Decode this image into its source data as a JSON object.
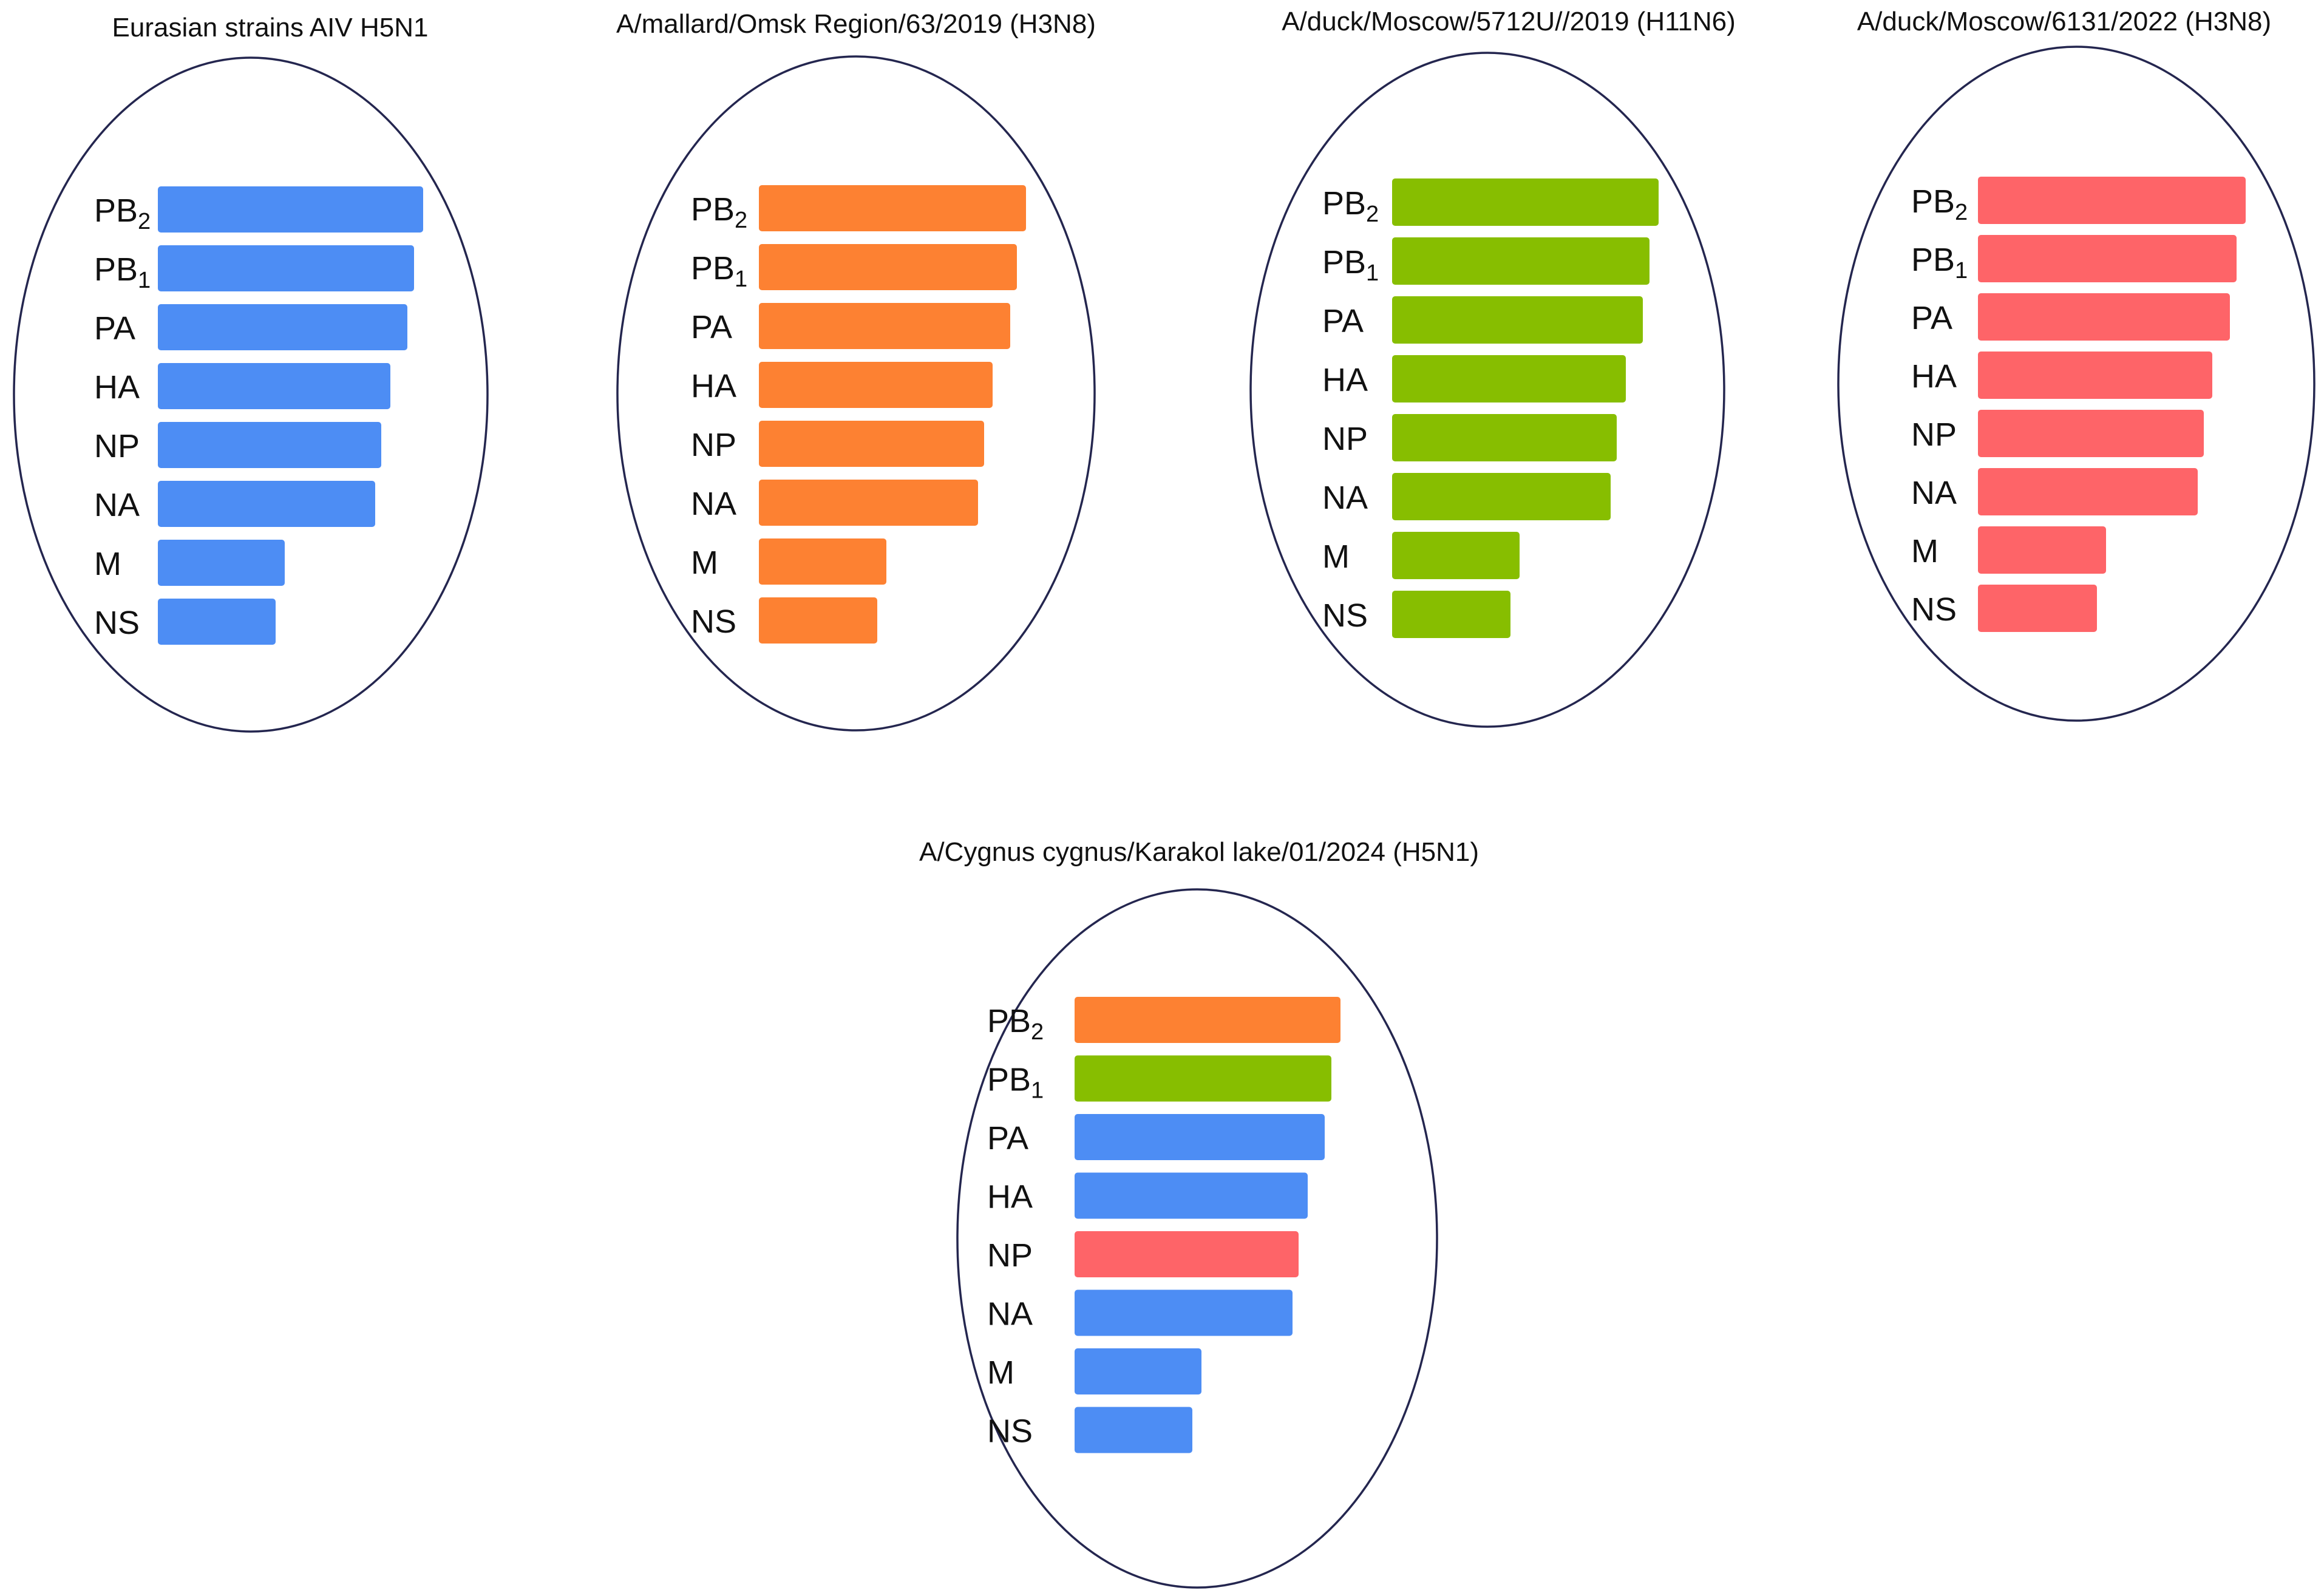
{
  "colors": {
    "blue": "#4d8df4",
    "orange": "#fd8132",
    "green": "#87be00",
    "red": "#fe6468",
    "outline": "#24264f"
  },
  "panels": [
    {
      "title": "Eurasian strains AIV H5N1",
      "segments": [
        {
          "name": "PB",
          "sub": "2",
          "length": 1.0,
          "color": "blue"
        },
        {
          "name": "PB",
          "sub": "1",
          "length": 0.966,
          "color": "blue"
        },
        {
          "name": "PA",
          "sub": "",
          "length": 0.941,
          "color": "blue"
        },
        {
          "name": "HA",
          "sub": "",
          "length": 0.876,
          "color": "blue"
        },
        {
          "name": "NP",
          "sub": "",
          "length": 0.843,
          "color": "blue"
        },
        {
          "name": "NA",
          "sub": "",
          "length": 0.82,
          "color": "blue"
        },
        {
          "name": "M",
          "sub": "",
          "length": 0.478,
          "color": "blue"
        },
        {
          "name": "NS",
          "sub": "",
          "length": 0.444,
          "color": "blue"
        }
      ]
    },
    {
      "title": "A/mallard/Omsk Region/63/2019 (H3N8)",
      "segments": [
        {
          "name": "PB",
          "sub": "2",
          "length": 1.0,
          "color": "orange"
        },
        {
          "name": "PB",
          "sub": "1",
          "length": 0.966,
          "color": "orange"
        },
        {
          "name": "PA",
          "sub": "",
          "length": 0.941,
          "color": "orange"
        },
        {
          "name": "HA",
          "sub": "",
          "length": 0.876,
          "color": "orange"
        },
        {
          "name": "NP",
          "sub": "",
          "length": 0.843,
          "color": "orange"
        },
        {
          "name": "NA",
          "sub": "",
          "length": 0.82,
          "color": "orange"
        },
        {
          "name": "M",
          "sub": "",
          "length": 0.478,
          "color": "orange"
        },
        {
          "name": "NS",
          "sub": "",
          "length": 0.444,
          "color": "orange"
        }
      ]
    },
    {
      "title": "A/duck/Moscow/5712U//2019 (H11N6)",
      "segments": [
        {
          "name": "PB",
          "sub": "2",
          "length": 1.0,
          "color": "green"
        },
        {
          "name": "PB",
          "sub": "1",
          "length": 0.966,
          "color": "green"
        },
        {
          "name": "PA",
          "sub": "",
          "length": 0.941,
          "color": "green"
        },
        {
          "name": "HA",
          "sub": "",
          "length": 0.876,
          "color": "green"
        },
        {
          "name": "NP",
          "sub": "",
          "length": 0.843,
          "color": "green"
        },
        {
          "name": "NA",
          "sub": "",
          "length": 0.82,
          "color": "green"
        },
        {
          "name": "M",
          "sub": "",
          "length": 0.478,
          "color": "green"
        },
        {
          "name": "NS",
          "sub": "",
          "length": 0.444,
          "color": "green"
        }
      ]
    },
    {
      "title": "A/duck/Moscow/6131/2022 (H3N8)",
      "segments": [
        {
          "name": "PB",
          "sub": "2",
          "length": 1.0,
          "color": "red"
        },
        {
          "name": "PB",
          "sub": "1",
          "length": 0.966,
          "color": "red"
        },
        {
          "name": "PA",
          "sub": "",
          "length": 0.941,
          "color": "red"
        },
        {
          "name": "HA",
          "sub": "",
          "length": 0.876,
          "color": "red"
        },
        {
          "name": "NP",
          "sub": "",
          "length": 0.843,
          "color": "red"
        },
        {
          "name": "NA",
          "sub": "",
          "length": 0.82,
          "color": "red"
        },
        {
          "name": "M",
          "sub": "",
          "length": 0.478,
          "color": "red"
        },
        {
          "name": "NS",
          "sub": "",
          "length": 0.444,
          "color": "red"
        }
      ]
    },
    {
      "title": "A/Cygnus cygnus/Karakol lake/01/2024 (H5N1)",
      "segments": [
        {
          "name": "PB",
          "sub": "2",
          "length": 1.0,
          "color": "orange"
        },
        {
          "name": "PB",
          "sub": "1",
          "length": 0.966,
          "color": "green"
        },
        {
          "name": "PA",
          "sub": "",
          "length": 0.941,
          "color": "blue"
        },
        {
          "name": "HA",
          "sub": "",
          "length": 0.876,
          "color": "blue"
        },
        {
          "name": "NP",
          "sub": "",
          "length": 0.843,
          "color": "red"
        },
        {
          "name": "NA",
          "sub": "",
          "length": 0.82,
          "color": "blue"
        },
        {
          "name": "M",
          "sub": "",
          "length": 0.478,
          "color": "blue"
        },
        {
          "name": "NS",
          "sub": "",
          "length": 0.444,
          "color": "blue"
        }
      ]
    }
  ]
}
